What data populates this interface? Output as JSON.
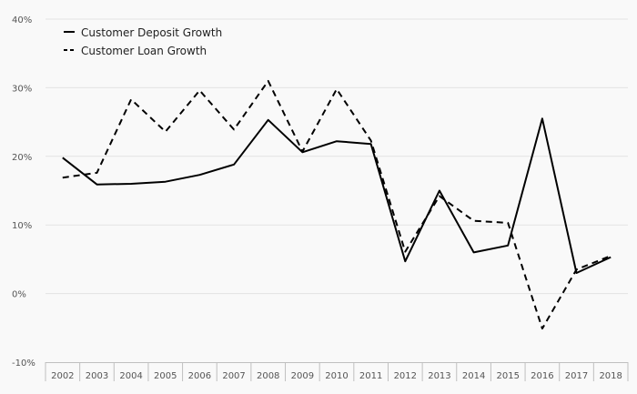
{
  "chart_data": {
    "type": "line",
    "categories": [
      "2002",
      "2003",
      "2004",
      "2005",
      "2006",
      "2007",
      "2008",
      "2009",
      "2010",
      "2011",
      "2012",
      "2013",
      "2014",
      "2015",
      "2016",
      "2017",
      "2018"
    ],
    "ylim": [
      -10,
      40
    ],
    "yticks": [
      -10,
      0,
      10,
      20,
      30,
      40
    ],
    "ytick_labels": [
      "-10%",
      "0%",
      "10%",
      "20%",
      "30%",
      "40%"
    ],
    "grid": true,
    "legend_position": "top-left",
    "series": [
      {
        "name": "Customer Deposit Growth",
        "style": "solid",
        "color": "#000000",
        "values": [
          19.8,
          15.9,
          16.0,
          16.3,
          17.3,
          18.8,
          25.3,
          20.6,
          22.2,
          21.8,
          4.7,
          15.0,
          6.0,
          7.0,
          25.5,
          3.0,
          5.3
        ]
      },
      {
        "name": "Customer Loan Growth",
        "style": "dashed",
        "color": "#000000",
        "values": [
          16.9,
          17.6,
          28.3,
          23.6,
          29.6,
          23.9,
          31.0,
          20.7,
          29.8,
          22.3,
          6.1,
          14.2,
          10.6,
          10.3,
          -5.1,
          3.5,
          5.5
        ]
      }
    ]
  }
}
